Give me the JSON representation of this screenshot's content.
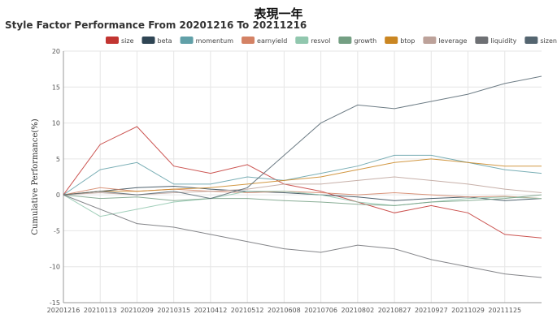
{
  "page": {
    "top_heading": "表現一年"
  },
  "chart_data": {
    "type": "line",
    "title": "Style Factor Performance From 20201216 To 20211216",
    "ylabel": "Cumulative Performance(%)",
    "xlabel": "",
    "ylim": [
      -15,
      20
    ],
    "yticks": [
      -15,
      -10,
      -5,
      0,
      5,
      10,
      15,
      20
    ],
    "grid": true,
    "legend_position": "top-right",
    "x_dates": [
      "20201216",
      "20210113",
      "20210209",
      "20210315",
      "20210412",
      "20210512",
      "20210608",
      "20210706",
      "20210802",
      "20210827",
      "20210927",
      "20211029",
      "20211125",
      "20211216"
    ],
    "x_tick_labels": [
      "20201216",
      "20210113",
      "20210209",
      "20210315",
      "20210412",
      "20210512",
      "20210608",
      "20210706",
      "20210802",
      "20210827",
      "20210927",
      "20211029",
      "20211125"
    ],
    "series": [
      {
        "name": "size",
        "color": "#c23531",
        "values": [
          0,
          7.0,
          9.5,
          4.0,
          3.0,
          4.2,
          1.5,
          0.5,
          -1.0,
          -2.5,
          -1.5,
          -2.5,
          -5.5,
          -6.0
        ]
      },
      {
        "name": "beta",
        "color": "#2f4554",
        "values": [
          0,
          0.5,
          1.0,
          1.2,
          0.8,
          0.5,
          0.3,
          0.0,
          -0.3,
          -0.8,
          -0.5,
          -0.3,
          -0.8,
          -0.5
        ]
      },
      {
        "name": "momentum",
        "color": "#61a0a8",
        "values": [
          0,
          3.5,
          4.5,
          1.5,
          1.5,
          2.5,
          2.0,
          3.0,
          4.0,
          5.5,
          5.5,
          4.5,
          3.5,
          3.0
        ]
      },
      {
        "name": "earnyield",
        "color": "#d48265",
        "values": [
          0,
          1.0,
          0.5,
          0.8,
          0.5,
          0.3,
          0.5,
          0.3,
          0.0,
          0.3,
          0.0,
          -0.3,
          -0.2,
          -0.5
        ]
      },
      {
        "name": "resvol",
        "color": "#91c7ae",
        "values": [
          0,
          -3.0,
          -2.0,
          -1.0,
          -0.5,
          0.5,
          0.5,
          0.0,
          -1.0,
          -1.5,
          -1.0,
          -0.5,
          -0.3,
          -0.5
        ]
      },
      {
        "name": "growth",
        "color": "#749f83",
        "values": [
          0,
          -0.5,
          -0.3,
          -0.8,
          -0.5,
          -0.5,
          -0.8,
          -1.0,
          -1.3,
          -1.5,
          -1.0,
          -0.8,
          -0.5,
          0.0
        ]
      },
      {
        "name": "btop",
        "color": "#ca8622",
        "values": [
          0,
          0.5,
          0.5,
          0.8,
          1.0,
          1.5,
          2.0,
          2.5,
          3.5,
          4.5,
          5.0,
          4.5,
          4.0,
          4.0
        ]
      },
      {
        "name": "leverage",
        "color": "#bda29a",
        "values": [
          0,
          0.3,
          0.0,
          0.3,
          0.5,
          0.8,
          1.5,
          1.5,
          2.0,
          2.5,
          2.0,
          1.5,
          0.8,
          0.3
        ]
      },
      {
        "name": "liquidity",
        "color": "#6e7074",
        "values": [
          0,
          -2.0,
          -4.0,
          -4.5,
          -5.5,
          -6.5,
          -7.5,
          -8.0,
          -7.0,
          -7.5,
          -9.0,
          -10.0,
          -11.0,
          -11.5
        ]
      },
      {
        "name": "sizenl",
        "color": "#546570",
        "values": [
          0,
          0.5,
          0.0,
          0.5,
          -0.5,
          1.0,
          5.5,
          10.0,
          12.5,
          12.0,
          13.0,
          14.0,
          15.5,
          16.5
        ]
      }
    ]
  }
}
